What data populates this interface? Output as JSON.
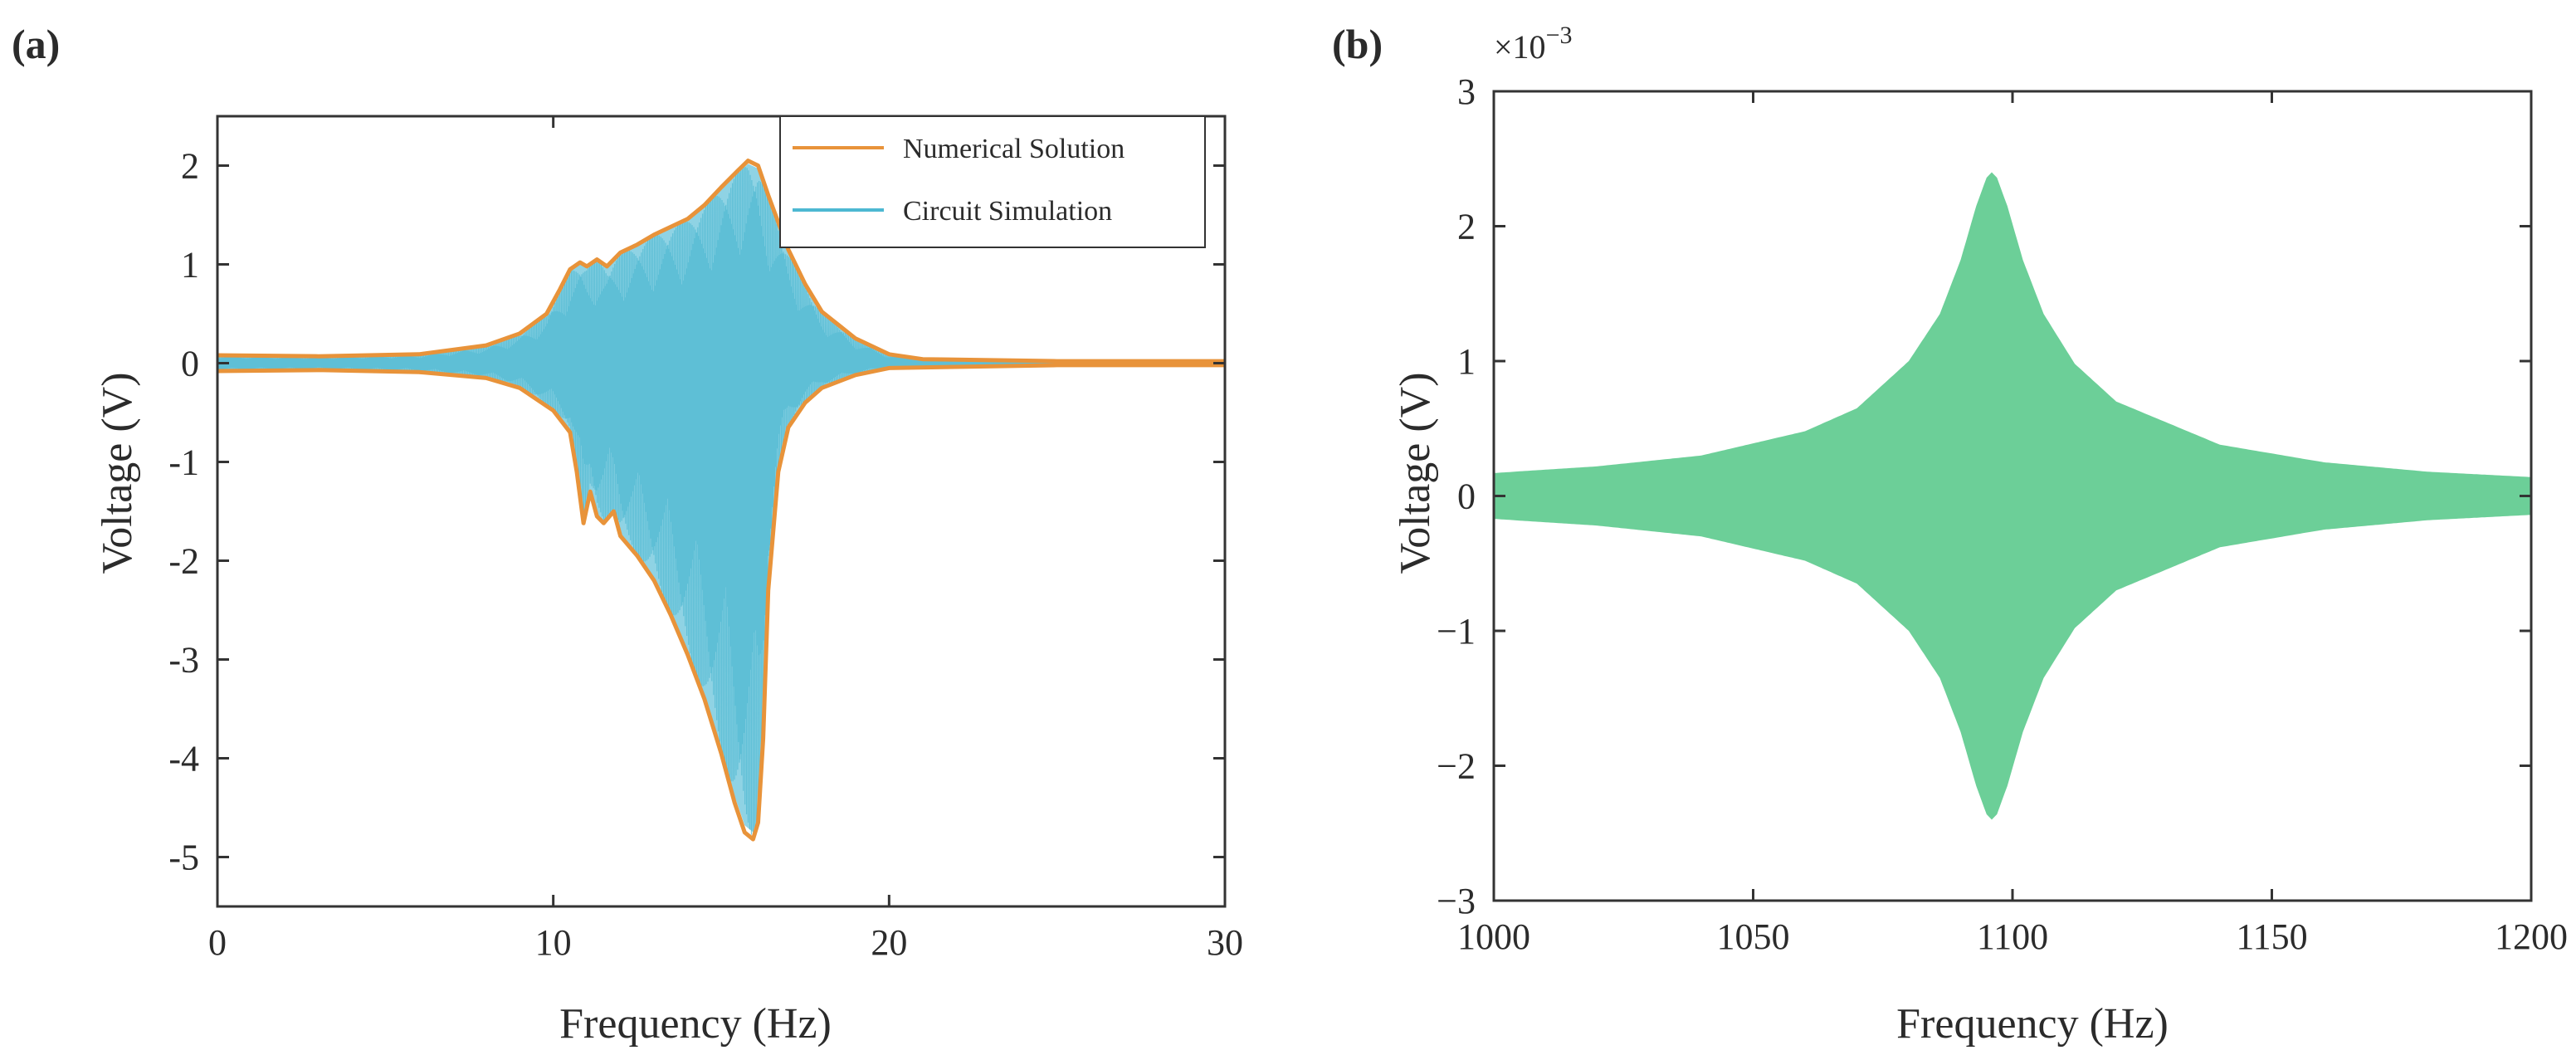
{
  "figure": {
    "colors": {
      "numerical": "#e8933a",
      "circuit": "#4db8d2",
      "circuit_fill": "#8fd3e4",
      "panel_b_fill": "#6ccf98",
      "axis": "#333333"
    }
  },
  "chart_data": [
    {
      "panel_label": "(a)",
      "type": "area",
      "xlabel": "Frequency (Hz)",
      "ylabel": "Voltage (V)",
      "xlim": [
        0,
        30
      ],
      "ylim": [
        -5.5,
        2.5
      ],
      "xticks": [
        0,
        10,
        20,
        30
      ],
      "yticks": [
        2,
        1,
        0,
        -1,
        -2,
        -3,
        -4,
        -5
      ],
      "grid": false,
      "legend_position": "top-right",
      "series": [
        {
          "name": "Numerical Solution",
          "kind": "envelope-line",
          "upper": [
            [
              0,
              0.08
            ],
            [
              3,
              0.07
            ],
            [
              6,
              0.09
            ],
            [
              8,
              0.18
            ],
            [
              9,
              0.3
            ],
            [
              9.8,
              0.5
            ],
            [
              10.2,
              0.75
            ],
            [
              10.5,
              0.95
            ],
            [
              10.8,
              1.02
            ],
            [
              11.0,
              0.98
            ],
            [
              11.3,
              1.05
            ],
            [
              11.6,
              0.98
            ],
            [
              12.0,
              1.12
            ],
            [
              12.5,
              1.2
            ],
            [
              13.0,
              1.3
            ],
            [
              13.5,
              1.38
            ],
            [
              14.0,
              1.46
            ],
            [
              14.5,
              1.6
            ],
            [
              15.0,
              1.78
            ],
            [
              15.5,
              1.95
            ],
            [
              15.8,
              2.05
            ],
            [
              16.1,
              2.0
            ],
            [
              16.4,
              1.7
            ],
            [
              17.0,
              1.15
            ],
            [
              17.5,
              0.8
            ],
            [
              18.0,
              0.52
            ],
            [
              19.0,
              0.25
            ],
            [
              20.0,
              0.09
            ],
            [
              21.0,
              0.04
            ],
            [
              25.0,
              0.02
            ],
            [
              30.0,
              0.02
            ]
          ],
          "lower": [
            [
              0,
              -0.08
            ],
            [
              3,
              -0.07
            ],
            [
              6,
              -0.09
            ],
            [
              8,
              -0.15
            ],
            [
              9,
              -0.25
            ],
            [
              10,
              -0.48
            ],
            [
              10.5,
              -0.7
            ],
            [
              10.7,
              -1.1
            ],
            [
              10.9,
              -1.62
            ],
            [
              11.1,
              -1.3
            ],
            [
              11.3,
              -1.55
            ],
            [
              11.5,
              -1.62
            ],
            [
              11.8,
              -1.5
            ],
            [
              12.0,
              -1.75
            ],
            [
              12.5,
              -1.95
            ],
            [
              13.0,
              -2.2
            ],
            [
              13.5,
              -2.55
            ],
            [
              14.0,
              -2.95
            ],
            [
              14.5,
              -3.4
            ],
            [
              15.0,
              -3.95
            ],
            [
              15.4,
              -4.45
            ],
            [
              15.7,
              -4.75
            ],
            [
              15.95,
              -4.82
            ],
            [
              16.1,
              -4.65
            ],
            [
              16.25,
              -3.8
            ],
            [
              16.4,
              -2.3
            ],
            [
              16.7,
              -1.1
            ],
            [
              17.0,
              -0.65
            ],
            [
              17.5,
              -0.4
            ],
            [
              18.0,
              -0.25
            ],
            [
              19.0,
              -0.12
            ],
            [
              20.0,
              -0.05
            ],
            [
              25.0,
              -0.02
            ],
            [
              30.0,
              -0.02
            ]
          ]
        },
        {
          "name": "Circuit Simulation",
          "kind": "oscillation-fill"
        }
      ]
    },
    {
      "panel_label": "(b)",
      "type": "area",
      "xlabel": "Frequency (Hz)",
      "ylabel": "Voltage (V)",
      "y_exponent": "×10",
      "y_exponent_power": "−3",
      "xlim": [
        1000,
        1200
      ],
      "ylim": [
        -3,
        3
      ],
      "xticks": [
        1000,
        1050,
        1100,
        1150,
        1200
      ],
      "yticks": [
        3,
        2,
        1,
        0,
        -1,
        -2,
        -3
      ],
      "ytick_labels": [
        "3",
        "2",
        "1",
        "0",
        "−1",
        "−2",
        "−3"
      ],
      "grid": false,
      "series": [
        {
          "kind": "symmetric-envelope",
          "peak_x": 1096,
          "envelope": [
            [
              1000,
              0.17
            ],
            [
              1020,
              0.22
            ],
            [
              1040,
              0.3
            ],
            [
              1060,
              0.48
            ],
            [
              1070,
              0.65
            ],
            [
              1080,
              1.0
            ],
            [
              1086,
              1.35
            ],
            [
              1090,
              1.75
            ],
            [
              1093,
              2.15
            ],
            [
              1095,
              2.36
            ],
            [
              1096,
              2.4
            ],
            [
              1097,
              2.36
            ],
            [
              1099,
              2.15
            ],
            [
              1102,
              1.75
            ],
            [
              1106,
              1.35
            ],
            [
              1112,
              0.98
            ],
            [
              1120,
              0.7
            ],
            [
              1140,
              0.38
            ],
            [
              1160,
              0.25
            ],
            [
              1180,
              0.18
            ],
            [
              1200,
              0.14
            ]
          ]
        }
      ]
    }
  ]
}
